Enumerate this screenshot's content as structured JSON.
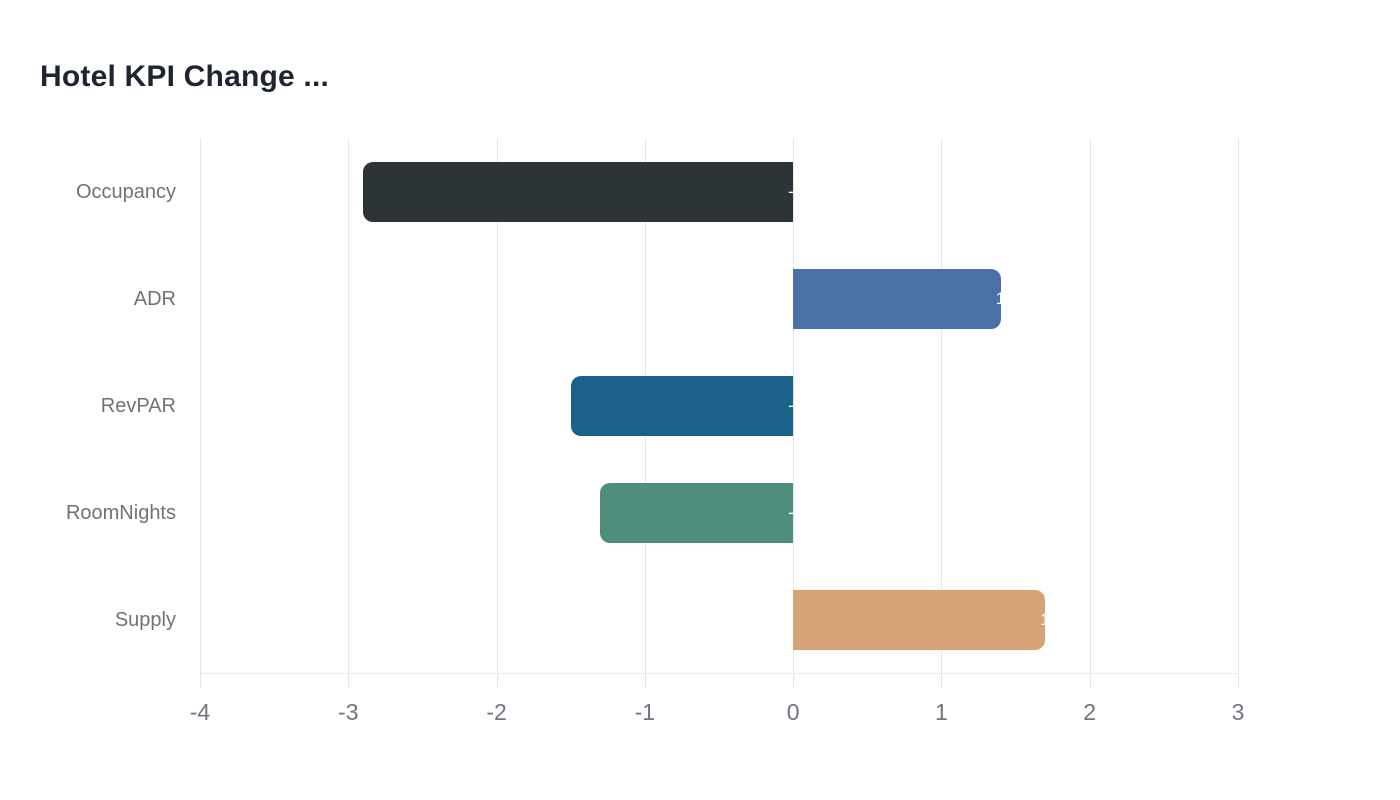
{
  "title": "Hotel KPI Change ...",
  "chart_data": {
    "type": "bar",
    "orientation": "horizontal",
    "title": "Hotel KPI Change ...",
    "categories": [
      "Occupancy",
      "ADR",
      "RevPAR",
      "RoomNights",
      "Supply"
    ],
    "values": [
      -2.9,
      1.4,
      -1.5,
      -1.3,
      1.7
    ],
    "bar_colors": [
      "#2c3438",
      "#4a70a8",
      "#1a6189",
      "#4f8e7d",
      "#d5a376"
    ],
    "data_label_color": "#ffffff",
    "xlabel": "",
    "ylabel": "",
    "xlim": [
      -4,
      3
    ],
    "x_ticks": [
      "-4",
      "-3",
      "-2",
      "-1",
      "0",
      "1",
      "2",
      "3"
    ],
    "grid": true,
    "legend": false
  },
  "colors": {
    "background": "#ffffff",
    "title_text": "#1e2430",
    "category_label_text": "#6e7279",
    "axis_label_text": "#70747d",
    "gridline": "#e3e6ea",
    "axis_line": "#d9d9d9",
    "tick": "#e7e7e7"
  }
}
